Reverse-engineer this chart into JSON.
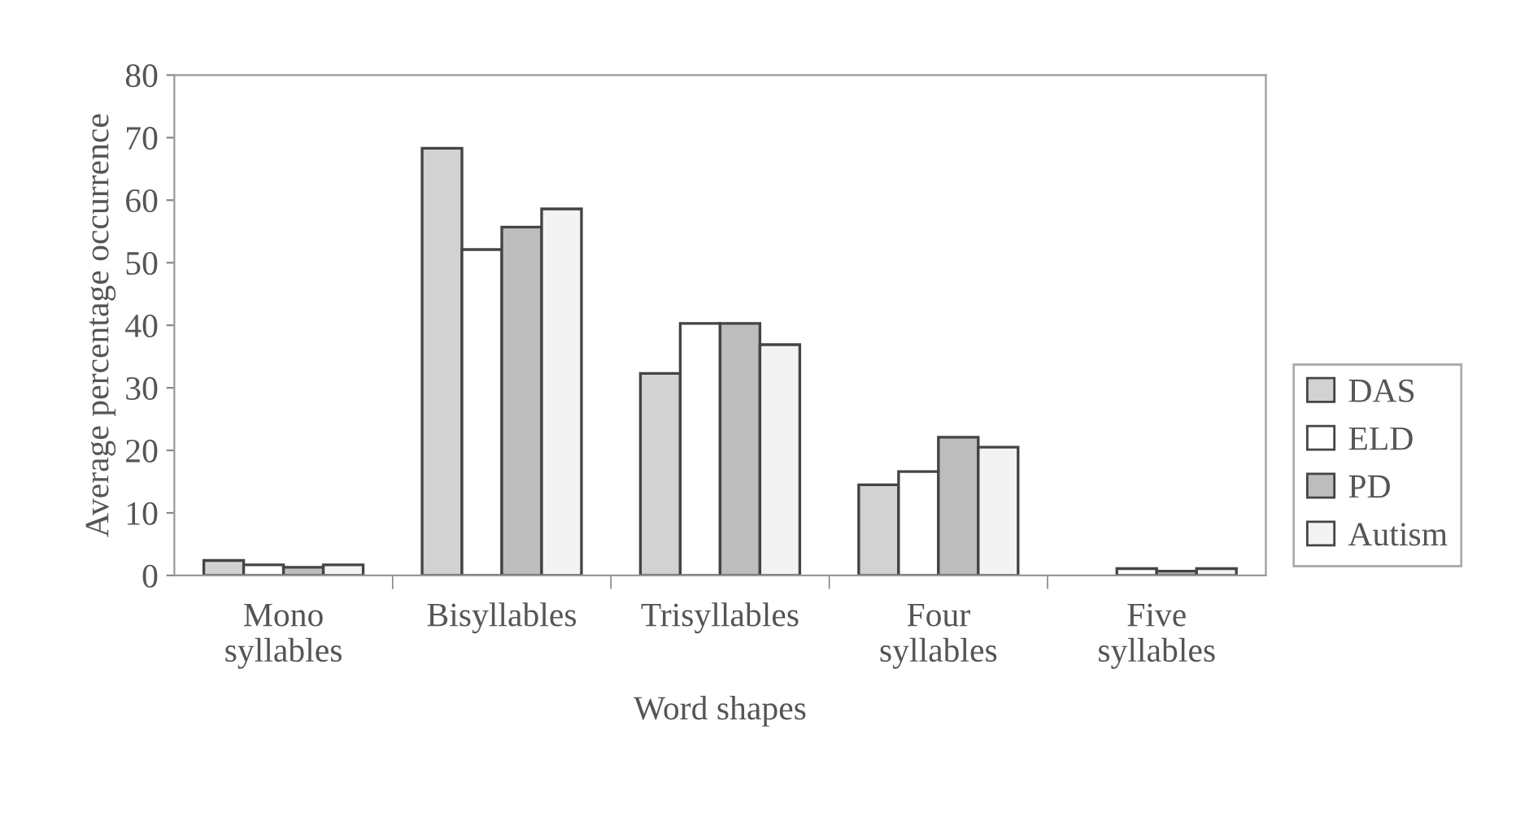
{
  "chart_data": {
    "type": "bar",
    "xlabel": "Word shapes",
    "ylabel": "Average percentage occurrence",
    "categories": [
      "Mono\nsyllables",
      "Bisyllables",
      "Trisyllables",
      "Four\nsyllables",
      "Five\nsyllables"
    ],
    "series": [
      {
        "name": "DAS",
        "color": "#d2d2d2",
        "values": [
          2.4,
          68.3,
          32.3,
          14.5,
          null
        ]
      },
      {
        "name": "ELD",
        "color": "#ffffff",
        "values": [
          1.7,
          52.1,
          40.3,
          16.6,
          1.1
        ]
      },
      {
        "name": "PD",
        "color": "#bdbdbd",
        "values": [
          1.3,
          55.7,
          40.3,
          22.1,
          0.7
        ]
      },
      {
        "name": "Autism",
        "color": "#f3f3f3",
        "values": [
          1.7,
          58.6,
          36.9,
          20.5,
          1.1
        ]
      }
    ],
    "ylim": [
      0,
      80
    ],
    "yticks": [
      0,
      10,
      20,
      30,
      40,
      50,
      60,
      70,
      80
    ],
    "grid": false,
    "legend": "right"
  }
}
